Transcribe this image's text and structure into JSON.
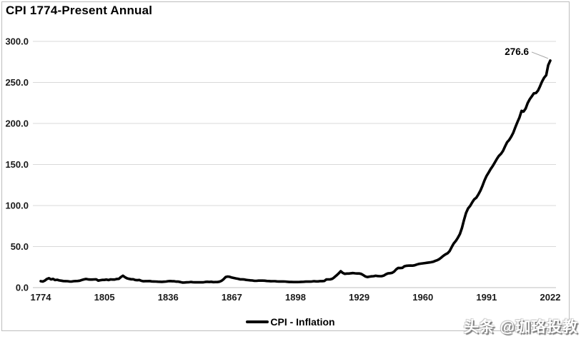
{
  "title": "CPI 1774-Present Annual",
  "legend": {
    "label": "CPI - Inflation"
  },
  "watermark": "头条 @珈珞投教",
  "colors": {
    "line": "#000000",
    "gridline": "#d9d9d9",
    "axis": "#bfbfbf",
    "leader": "#a6a6a6",
    "frame_border": "#bdbdbd",
    "text": "#000000"
  },
  "chart_data": {
    "type": "line",
    "title": "CPI 1774-Present Annual",
    "xlabel": "",
    "ylabel": "",
    "xlim": [
      1774,
      2022
    ],
    "ylim": [
      0,
      300
    ],
    "grid": "horizontal",
    "legend_position": "bottom-center",
    "x_tick_years": [
      1774,
      1805,
      1836,
      1867,
      1898,
      1929,
      1960,
      1991,
      2022
    ],
    "x_tick_labels": [
      "1774",
      "1805",
      "1836",
      "1867",
      "1898",
      "1929",
      "1960",
      "1991",
      "2022"
    ],
    "y_tick_values": [
      0,
      50,
      100,
      150,
      200,
      250,
      300
    ],
    "y_tick_labels": [
      "0.0",
      "50.0",
      "100.0",
      "150.0",
      "200.0",
      "250.0",
      "300.0"
    ],
    "annotation": {
      "text": "276.6",
      "year": 2022,
      "value": 276.6
    },
    "series": [
      {
        "name": "CPI - Inflation",
        "start_year": 1774,
        "end_year": 2022,
        "values": [
          7.8,
          7.4,
          8.6,
          10.5,
          11.5,
          10.0,
          10.6,
          9.2,
          9.6,
          8.8,
          8.4,
          8.0,
          7.9,
          7.8,
          7.5,
          7.4,
          7.8,
          8.0,
          8.1,
          8.4,
          9.3,
          10.0,
          10.5,
          10.1,
          9.8,
          9.8,
          10.0,
          10.1,
          8.5,
          9.0,
          9.4,
          9.4,
          9.8,
          9.2,
          10.0,
          9.8,
          9.8,
          10.5,
          10.7,
          12.8,
          14.5,
          12.7,
          11.3,
          10.7,
          10.2,
          10.2,
          9.3,
          9.0,
          9.3,
          8.3,
          7.7,
          7.9,
          7.9,
          8.0,
          7.6,
          7.5,
          7.4,
          7.2,
          7.1,
          7.0,
          7.2,
          7.4,
          7.8,
          8.0,
          7.7,
          7.7,
          7.3,
          7.3,
          6.8,
          6.2,
          6.3,
          6.4,
          6.5,
          6.9,
          6.6,
          6.4,
          6.5,
          6.4,
          6.5,
          6.4,
          6.9,
          7.1,
          6.9,
          7.1,
          6.7,
          6.8,
          6.8,
          7.2,
          8.3,
          10.3,
          13.0,
          13.5,
          13.1,
          12.3,
          11.7,
          11.2,
          10.8,
          10.1,
          10.1,
          9.9,
          9.4,
          9.1,
          8.9,
          8.7,
          8.3,
          8.3,
          8.5,
          8.5,
          8.5,
          8.4,
          8.1,
          8.0,
          7.7,
          7.8,
          7.8,
          7.6,
          7.5,
          7.5,
          7.5,
          7.4,
          7.1,
          6.9,
          6.9,
          6.8,
          6.8,
          6.8,
          6.9,
          7.0,
          7.1,
          7.3,
          7.4,
          7.3,
          7.5,
          7.8,
          7.6,
          7.6,
          7.9,
          7.9,
          8.1,
          9.9,
          10.0,
          10.1,
          10.9,
          12.8,
          15.0,
          17.3,
          20.0,
          17.9,
          16.8,
          17.1,
          17.1,
          17.5,
          17.7,
          17.4,
          17.2,
          17.2,
          16.7,
          15.2,
          13.6,
          12.9,
          13.4,
          13.7,
          13.9,
          14.4,
          14.1,
          13.9,
          14.0,
          14.7,
          16.3,
          17.3,
          17.6,
          18.0,
          19.5,
          22.3,
          24.0,
          23.8,
          24.1,
          26.0,
          26.6,
          26.8,
          26.9,
          26.8,
          27.2,
          28.1,
          28.9,
          29.2,
          29.6,
          29.9,
          30.3,
          30.6,
          31.0,
          31.5,
          32.5,
          33.4,
          34.8,
          36.7,
          38.8,
          40.5,
          41.8,
          44.4,
          49.3,
          53.8,
          56.9,
          60.6,
          65.2,
          72.6,
          82.4,
          90.9,
          96.5,
          99.6,
          103.9,
          107.6,
          109.6,
          113.6,
          118.3,
          124.0,
          130.7,
          136.2,
          140.3,
          144.5,
          148.2,
          152.4,
          156.9,
          160.5,
          163.0,
          166.6,
          172.2,
          177.1,
          179.9,
          184.0,
          188.9,
          195.3,
          201.6,
          207.3,
          215.3,
          214.5,
          218.1,
          224.9,
          229.6,
          233.0,
          236.7,
          237.0,
          240.0,
          245.1,
          251.1,
          255.7,
          258.8,
          271.0,
          276.6
        ]
      }
    ]
  }
}
